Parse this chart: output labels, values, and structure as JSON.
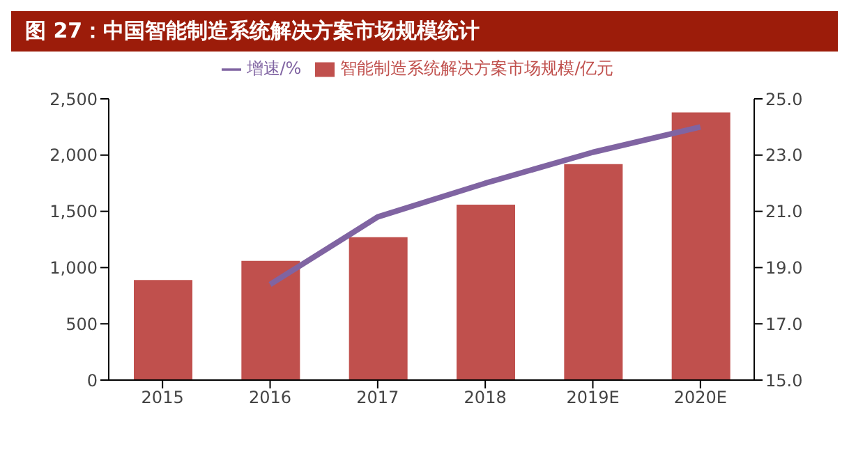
{
  "chart_data": {
    "type": "bar",
    "title": "图 27：中国智能制造系统解决方案市场规模统计",
    "categories": [
      "2015",
      "2016",
      "2017",
      "2018",
      "2019E",
      "2020E"
    ],
    "series": [
      {
        "name": "智能制造系统解决方案市场规模/亿元",
        "color": "#c0504d",
        "values": [
          890,
          1060,
          1270,
          1560,
          1920,
          2380
        ]
      },
      {
        "name": "增速/%",
        "type": "line",
        "axis": "y2",
        "color": "#8064a2",
        "values": [
          null,
          18.4,
          20.8,
          22.0,
          23.1,
          24.0
        ]
      }
    ],
    "ylim": [
      0,
      2500
    ],
    "yticks": [
      0,
      500,
      {
        "value": 1000,
        "label": "1,000"
      },
      {
        "value": 1500,
        "label": "1,500"
      },
      {
        "value": 2000,
        "label": "2,000"
      },
      {
        "value": 2500,
        "label": "2,500"
      }
    ],
    "y2lim": [
      15,
      25
    ],
    "y2ticks": [
      {
        "value": 15,
        "label": "15.0"
      },
      {
        "value": 17,
        "label": "17.0"
      },
      {
        "value": 19,
        "label": "19.0"
      },
      {
        "value": 21,
        "label": "21.0"
      },
      {
        "value": 23,
        "label": "23.0"
      },
      {
        "value": 25,
        "label": "25.0"
      }
    ],
    "grid": false,
    "legend": "top",
    "marker": "none"
  }
}
